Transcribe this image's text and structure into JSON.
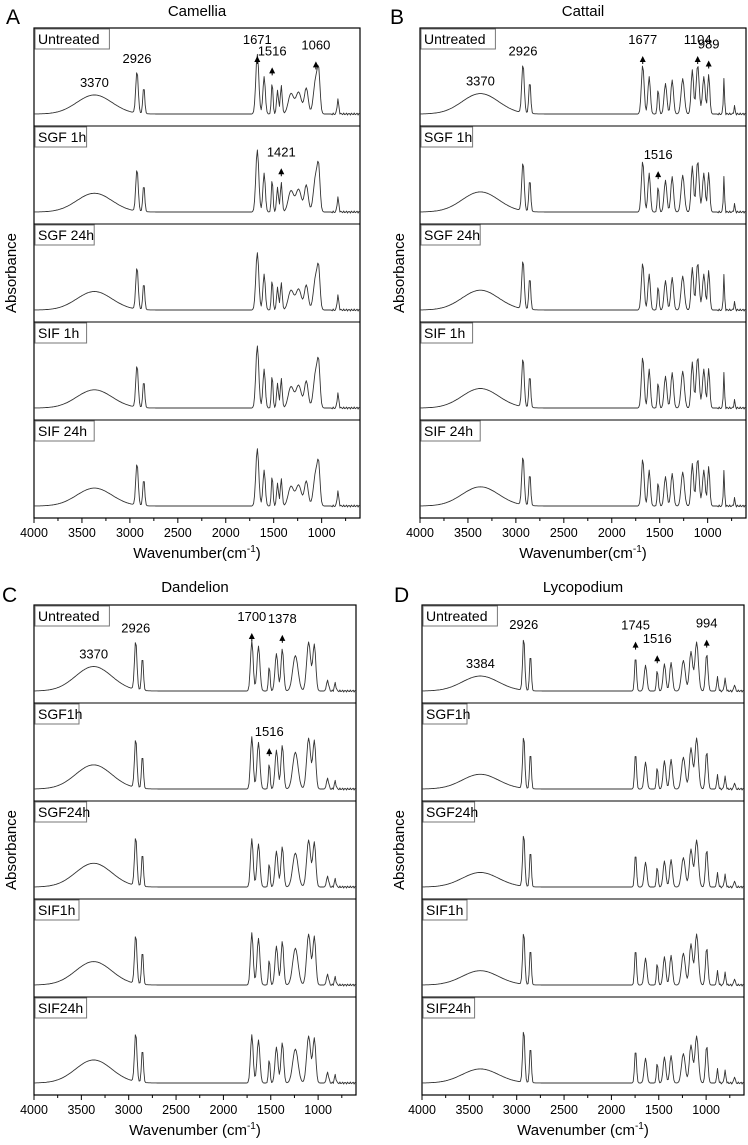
{
  "chart_data": [
    {
      "type": "line",
      "panel_letter": "A",
      "title": "Camellia",
      "xlabel": "Wavenumber(cm",
      "xlabel_sup": "-1",
      "xlabel_tail": ")",
      "ylabel": "Absorbance",
      "xlim": [
        4000,
        600
      ],
      "xticks": [
        4000,
        3500,
        3000,
        2500,
        2000,
        1500,
        1000
      ],
      "series": [
        {
          "name": "Untreated",
          "annotations": [
            {
              "text": "3370",
              "x": 3370,
              "arrow": false
            },
            {
              "text": "2926",
              "x": 2926,
              "arrow": false
            },
            {
              "text": "1671",
              "x": 1671,
              "arrow": true
            },
            {
              "text": "1516",
              "x": 1516,
              "arrow": true
            },
            {
              "text": "1060",
              "x": 1060,
              "arrow": true
            }
          ]
        },
        {
          "name": "SGF 1h",
          "annotations": [
            {
              "text": "1421",
              "x": 1421,
              "arrow": true
            }
          ]
        },
        {
          "name": "SGF 24h",
          "annotations": []
        },
        {
          "name": "SIF 1h",
          "annotations": []
        },
        {
          "name": "SIF 24h",
          "annotations": []
        }
      ],
      "peaks": [
        {
          "x": 3370,
          "h": 0.28,
          "w": 260
        },
        {
          "x": 2926,
          "h": 0.62,
          "w": 18
        },
        {
          "x": 2855,
          "h": 0.4,
          "w": 14
        },
        {
          "x": 1671,
          "h": 0.88,
          "w": 22
        },
        {
          "x": 1600,
          "h": 0.55,
          "w": 18
        },
        {
          "x": 1516,
          "h": 0.48,
          "w": 12
        },
        {
          "x": 1460,
          "h": 0.35,
          "w": 14
        },
        {
          "x": 1421,
          "h": 0.42,
          "w": 14
        },
        {
          "x": 1320,
          "h": 0.3,
          "w": 40
        },
        {
          "x": 1240,
          "h": 0.32,
          "w": 40
        },
        {
          "x": 1160,
          "h": 0.38,
          "w": 28
        },
        {
          "x": 1060,
          "h": 0.52,
          "w": 34
        },
        {
          "x": 1030,
          "h": 0.45,
          "w": 20
        },
        {
          "x": 830,
          "h": 0.22,
          "w": 12
        }
      ]
    },
    {
      "type": "line",
      "panel_letter": "B",
      "title": "Cattail",
      "xlabel": "Wavenumber(cm",
      "xlabel_sup": "-1",
      "xlabel_tail": ")",
      "ylabel": "Absorbance",
      "xlim": [
        4000,
        600
      ],
      "xticks": [
        4000,
        3500,
        3000,
        2500,
        2000,
        1500,
        1000
      ],
      "series": [
        {
          "name": "Untreated",
          "annotations": [
            {
              "text": "3370",
              "x": 3370,
              "arrow": false
            },
            {
              "text": "2926",
              "x": 2926,
              "arrow": false
            },
            {
              "text": "1677",
              "x": 1677,
              "arrow": true
            },
            {
              "text": "1104",
              "x": 1104,
              "arrow": true
            },
            {
              "text": "989",
              "x": 989,
              "arrow": true
            }
          ]
        },
        {
          "name": "SGF 1h",
          "annotations": [
            {
              "text": "1516",
              "x": 1516,
              "arrow": true
            }
          ]
        },
        {
          "name": "SGF 24h",
          "annotations": []
        },
        {
          "name": "SIF 1h",
          "annotations": []
        },
        {
          "name": "SIF 24h",
          "annotations": []
        }
      ],
      "peaks": [
        {
          "x": 3370,
          "h": 0.3,
          "w": 270
        },
        {
          "x": 2926,
          "h": 0.72,
          "w": 18
        },
        {
          "x": 2855,
          "h": 0.48,
          "w": 14
        },
        {
          "x": 1677,
          "h": 0.72,
          "w": 20
        },
        {
          "x": 1610,
          "h": 0.55,
          "w": 18
        },
        {
          "x": 1516,
          "h": 0.38,
          "w": 12
        },
        {
          "x": 1440,
          "h": 0.45,
          "w": 20
        },
        {
          "x": 1370,
          "h": 0.5,
          "w": 20
        },
        {
          "x": 1260,
          "h": 0.52,
          "w": 24
        },
        {
          "x": 1160,
          "h": 0.65,
          "w": 18
        },
        {
          "x": 1104,
          "h": 0.72,
          "w": 22
        },
        {
          "x": 1040,
          "h": 0.55,
          "w": 20
        },
        {
          "x": 989,
          "h": 0.58,
          "w": 16
        },
        {
          "x": 830,
          "h": 0.52,
          "w": 9
        },
        {
          "x": 720,
          "h": 0.12,
          "w": 8
        }
      ]
    },
    {
      "type": "line",
      "panel_letter": "C",
      "title": "Dandelion",
      "xlabel": "Wavenumber (cm",
      "xlabel_sup": "-1",
      "xlabel_tail": ")",
      "ylabel": "Absorbance",
      "xlim": [
        4000,
        600
      ],
      "xticks": [
        4000,
        3500,
        3000,
        2500,
        2000,
        1500,
        1000
      ],
      "series": [
        {
          "name": "Untreated",
          "annotations": [
            {
              "text": "3370",
              "x": 3370,
              "arrow": false
            },
            {
              "text": "2926",
              "x": 2926,
              "arrow": false
            },
            {
              "text": "1700",
              "x": 1700,
              "arrow": true
            },
            {
              "text": "1378",
              "x": 1378,
              "arrow": true
            }
          ]
        },
        {
          "name": "SGF1h",
          "annotations": [
            {
              "text": "1516",
              "x": 1516,
              "arrow": true
            }
          ]
        },
        {
          "name": "SGF24h",
          "annotations": []
        },
        {
          "name": "SIF1h",
          "annotations": []
        },
        {
          "name": "SIF24h",
          "annotations": []
        }
      ],
      "peaks": [
        {
          "x": 3370,
          "h": 0.36,
          "w": 270
        },
        {
          "x": 2926,
          "h": 0.72,
          "w": 18
        },
        {
          "x": 2855,
          "h": 0.5,
          "w": 14
        },
        {
          "x": 1700,
          "h": 0.74,
          "w": 20
        },
        {
          "x": 1630,
          "h": 0.66,
          "w": 22
        },
        {
          "x": 1516,
          "h": 0.38,
          "w": 12
        },
        {
          "x": 1440,
          "h": 0.55,
          "w": 22
        },
        {
          "x": 1378,
          "h": 0.62,
          "w": 20
        },
        {
          "x": 1240,
          "h": 0.52,
          "w": 40
        },
        {
          "x": 1100,
          "h": 0.72,
          "w": 30
        },
        {
          "x": 1040,
          "h": 0.68,
          "w": 22
        },
        {
          "x": 900,
          "h": 0.16,
          "w": 16
        },
        {
          "x": 820,
          "h": 0.12,
          "w": 12
        }
      ]
    },
    {
      "type": "line",
      "panel_letter": "D",
      "title": "Lycopodium",
      "xlabel": "Wavenumber (cm",
      "xlabel_sup": "-1",
      "xlabel_tail": ")",
      "ylabel": "Absorbance",
      "xlim": [
        4000,
        600
      ],
      "xticks": [
        4000,
        3500,
        3000,
        2500,
        2000,
        1500,
        1000
      ],
      "series": [
        {
          "name": "Untreated",
          "annotations": [
            {
              "text": "3384",
              "x": 3384,
              "arrow": false
            },
            {
              "text": "2926",
              "x": 2926,
              "arrow": false
            },
            {
              "text": "1745",
              "x": 1745,
              "arrow": true
            },
            {
              "text": "1516",
              "x": 1516,
              "arrow": true
            },
            {
              "text": "994",
              "x": 994,
              "arrow": true
            }
          ]
        },
        {
          "name": "SGF1h",
          "annotations": []
        },
        {
          "name": "SGF24h",
          "annotations": []
        },
        {
          "name": "SIF1h",
          "annotations": []
        },
        {
          "name": "SIF24h",
          "annotations": []
        }
      ],
      "peaks": [
        {
          "x": 3384,
          "h": 0.22,
          "w": 270
        },
        {
          "x": 2926,
          "h": 0.78,
          "w": 16
        },
        {
          "x": 2855,
          "h": 0.55,
          "w": 13
        },
        {
          "x": 1745,
          "h": 0.52,
          "w": 14
        },
        {
          "x": 1640,
          "h": 0.38,
          "w": 20
        },
        {
          "x": 1516,
          "h": 0.32,
          "w": 12
        },
        {
          "x": 1440,
          "h": 0.4,
          "w": 20
        },
        {
          "x": 1370,
          "h": 0.42,
          "w": 20
        },
        {
          "x": 1240,
          "h": 0.45,
          "w": 28
        },
        {
          "x": 1160,
          "h": 0.58,
          "w": 24
        },
        {
          "x": 1100,
          "h": 0.72,
          "w": 26
        },
        {
          "x": 994,
          "h": 0.55,
          "w": 18
        },
        {
          "x": 880,
          "h": 0.2,
          "w": 12
        },
        {
          "x": 800,
          "h": 0.18,
          "w": 12
        },
        {
          "x": 700,
          "h": 0.1,
          "w": 10
        }
      ]
    }
  ]
}
